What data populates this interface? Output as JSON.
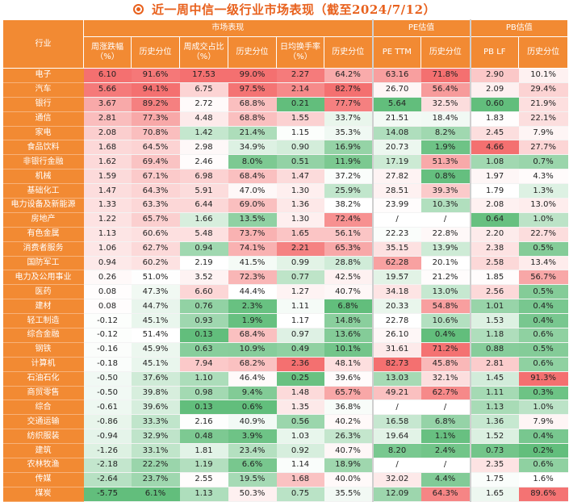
{
  "title": "近一周中信一级行业市场表现（截至2024/7/12）",
  "chart_data": {
    "type": "table",
    "header": {
      "industry": "行业",
      "groups": [
        "市场表现",
        "PE估值",
        "PB估值"
      ],
      "columns": [
        "周涨跌幅（%）",
        "历史分位",
        "周成交占比（%）",
        "历史分位",
        "日均换手率（%）",
        "历史分位",
        "PE TTM",
        "历史分位",
        "PB LF",
        "历史分位"
      ]
    },
    "rows": [
      {
        "name": "电子",
        "v": [
          "6.10",
          "91.6%",
          "17.53",
          "99.0%",
          "2.27",
          "64.2%",
          "63.16",
          "71.8%",
          "2.90",
          "10.1%"
        ]
      },
      {
        "name": "汽车",
        "v": [
          "5.66",
          "94.1%",
          "6.75",
          "97.5%",
          "2.14",
          "82.7%",
          "26.70",
          "56.4%",
          "2.09",
          "29.4%"
        ]
      },
      {
        "name": "银行",
        "v": [
          "3.67",
          "89.2%",
          "2.72",
          "68.8%",
          "0.21",
          "77.7%",
          "5.64",
          "32.5%",
          "0.60",
          "21.9%"
        ]
      },
      {
        "name": "通信",
        "v": [
          "2.81",
          "77.3%",
          "4.48",
          "68.8%",
          "1.55",
          "33.7%",
          "21.51",
          "18.4%",
          "1.83",
          "22.1%"
        ]
      },
      {
        "name": "家电",
        "v": [
          "2.08",
          "70.8%",
          "1.42",
          "21.4%",
          "1.15",
          "35.3%",
          "14.08",
          "8.2%",
          "2.45",
          "7.9%"
        ]
      },
      {
        "name": "食品饮料",
        "v": [
          "1.68",
          "64.5%",
          "2.98",
          "34.9%",
          "0.90",
          "16.9%",
          "20.73",
          "1.9%",
          "4.66",
          "27.7%"
        ]
      },
      {
        "name": "非银行金融",
        "v": [
          "1.62",
          "69.4%",
          "2.46",
          "8.0%",
          "0.51",
          "11.9%",
          "17.19",
          "51.3%",
          "1.08",
          "0.7%"
        ]
      },
      {
        "name": "机械",
        "v": [
          "1.59",
          "67.1%",
          "6.98",
          "68.4%",
          "1.47",
          "37.2%",
          "27.82",
          "0.8%",
          "1.97",
          "4.3%"
        ]
      },
      {
        "name": "基础化工",
        "v": [
          "1.47",
          "64.3%",
          "5.91",
          "47.0%",
          "1.30",
          "25.9%",
          "28.51",
          "39.3%",
          "1.79",
          "1.3%"
        ]
      },
      {
        "name": "电力设备及新能源",
        "v": [
          "1.33",
          "63.3%",
          "6.44",
          "69.0%",
          "1.36",
          "38.2%",
          "23.99",
          "10.3%",
          "2.08",
          "13.0%"
        ]
      },
      {
        "name": "房地产",
        "v": [
          "1.22",
          "65.7%",
          "1.66",
          "13.5%",
          "1.30",
          "72.4%",
          "/",
          "/",
          "0.64",
          "1.0%"
        ]
      },
      {
        "name": "有色金属",
        "v": [
          "1.13",
          "60.6%",
          "5.48",
          "73.7%",
          "1.65",
          "56.1%",
          "22.23",
          "22.8%",
          "2.20",
          "22.7%"
        ]
      },
      {
        "name": "消费者服务",
        "v": [
          "1.06",
          "62.7%",
          "0.94",
          "74.1%",
          "2.21",
          "65.3%",
          "35.15",
          "13.9%",
          "2.38",
          "0.5%"
        ]
      },
      {
        "name": "国防军工",
        "v": [
          "0.94",
          "60.2%",
          "2.19",
          "41.5%",
          "0.99",
          "28.8%",
          "62.28",
          "20.1%",
          "2.58",
          "13.4%"
        ]
      },
      {
        "name": "电力及公用事业",
        "v": [
          "0.26",
          "51.0%",
          "3.52",
          "72.3%",
          "0.77",
          "42.5%",
          "19.57",
          "21.2%",
          "1.85",
          "56.7%"
        ]
      },
      {
        "name": "医药",
        "v": [
          "0.08",
          "47.3%",
          "6.60",
          "44.4%",
          "1.27",
          "40.7%",
          "34.18",
          "13.0%",
          "2.56",
          "0.5%"
        ]
      },
      {
        "name": "建材",
        "v": [
          "0.08",
          "44.7%",
          "0.76",
          "2.3%",
          "1.11",
          "6.8%",
          "20.33",
          "54.8%",
          "1.01",
          "0.4%"
        ]
      },
      {
        "name": "轻工制造",
        "v": [
          "-0.12",
          "45.1%",
          "0.93",
          "1.9%",
          "1.17",
          "14.8%",
          "22.78",
          "10.6%",
          "1.53",
          "0.4%"
        ]
      },
      {
        "name": "综合金融",
        "v": [
          "-0.12",
          "51.4%",
          "0.13",
          "68.4%",
          "0.97",
          "13.6%",
          "26.10",
          "0.4%",
          "1.18",
          "0.6%"
        ]
      },
      {
        "name": "钢铁",
        "v": [
          "-0.16",
          "45.9%",
          "0.63",
          "10.9%",
          "0.49",
          "10.1%",
          "31.61",
          "71.2%",
          "0.88",
          "0.5%"
        ]
      },
      {
        "name": "计算机",
        "v": [
          "-0.18",
          "45.1%",
          "7.94",
          "68.2%",
          "2.36",
          "48.1%",
          "82.73",
          "45.8%",
          "2.81",
          "0.6%"
        ]
      },
      {
        "name": "石油石化",
        "v": [
          "-0.50",
          "37.6%",
          "1.10",
          "46.4%",
          "0.25",
          "39.6%",
          "13.03",
          "32.1%",
          "1.45",
          "91.3%"
        ]
      },
      {
        "name": "商贸零售",
        "v": [
          "-0.50",
          "39.8%",
          "0.98",
          "9.4%",
          "1.48",
          "65.7%",
          "49.21",
          "62.7%",
          "1.11",
          "0.3%"
        ]
      },
      {
        "name": "综合",
        "v": [
          "-0.61",
          "39.6%",
          "0.13",
          "0.6%",
          "1.35",
          "36.8%",
          "/",
          "/",
          "1.13",
          "1.0%"
        ]
      },
      {
        "name": "交通运输",
        "v": [
          "-0.86",
          "33.3%",
          "2.16",
          "40.9%",
          "0.56",
          "40.2%",
          "16.58",
          "6.8%",
          "1.36",
          "7.9%"
        ]
      },
      {
        "name": "纺织服装",
        "v": [
          "-0.94",
          "32.9%",
          "0.48",
          "3.9%",
          "1.03",
          "26.3%",
          "19.64",
          "1.1%",
          "1.52",
          "0.4%"
        ]
      },
      {
        "name": "建筑",
        "v": [
          "-1.26",
          "33.1%",
          "1.81",
          "23.4%",
          "0.92",
          "40.7%",
          "8.20",
          "2.4%",
          "0.73",
          "0.2%"
        ]
      },
      {
        "name": "农林牧渔",
        "v": [
          "-2.18",
          "22.2%",
          "1.19",
          "6.6%",
          "1.14",
          "18.9%",
          "/",
          "/",
          "2.35",
          "0.6%"
        ]
      },
      {
        "name": "传媒",
        "v": [
          "-2.64",
          "23.7%",
          "2.55",
          "19.5%",
          "1.68",
          "40.0%",
          "32.02",
          "4.4%",
          "1.75",
          "1.6%"
        ]
      },
      {
        "name": "煤炭",
        "v": [
          "-5.75",
          "6.1%",
          "1.13",
          "50.3%",
          "0.75",
          "35.5%",
          "12.09",
          "64.3%",
          "1.65",
          "89.6%"
        ]
      }
    ]
  }
}
